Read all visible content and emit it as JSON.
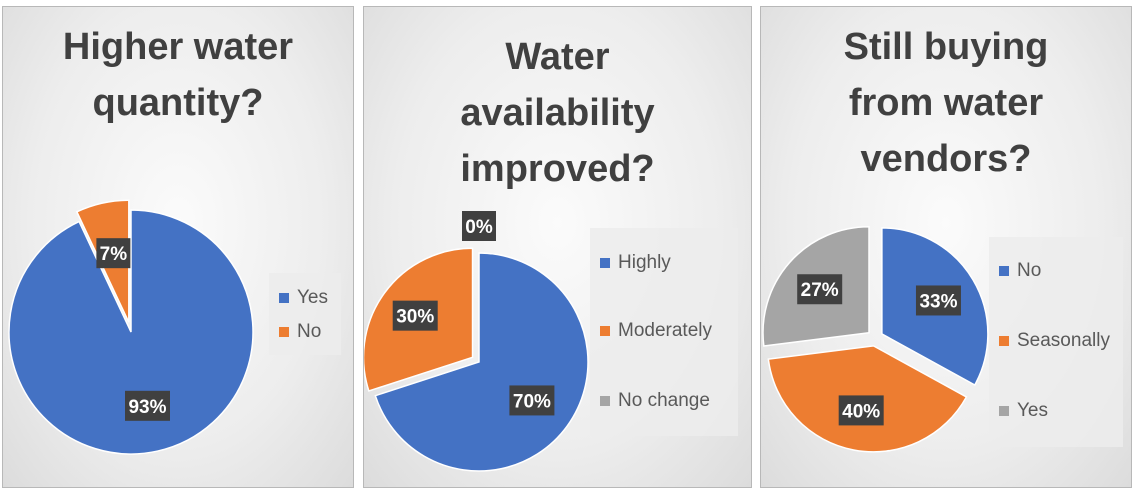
{
  "colors": {
    "blue": "#4472C4",
    "orange": "#ED7D31",
    "gray": "#A5A5A5"
  },
  "chart_data": [
    {
      "type": "pie",
      "title_lines": [
        "Higher water",
        "quantity?"
      ],
      "categories": [
        "Yes",
        "No"
      ],
      "values": [
        93,
        7
      ],
      "labels": [
        "93%",
        "7%"
      ],
      "colors": [
        "#4472C4",
        "#ED7D31"
      ],
      "legend_position": "right"
    },
    {
      "type": "pie",
      "title_lines": [
        "Water",
        "availability",
        "improved?"
      ],
      "categories": [
        "Highly",
        "Moderately",
        "No change"
      ],
      "values": [
        70,
        30,
        0
      ],
      "labels": [
        "70%",
        "30%",
        "0%"
      ],
      "colors": [
        "#4472C4",
        "#ED7D31",
        "#A5A5A5"
      ],
      "legend_position": "right"
    },
    {
      "type": "pie",
      "title_lines": [
        "Still buying",
        "from water",
        "vendors?"
      ],
      "categories": [
        "No",
        "Seasonally",
        "Yes"
      ],
      "values": [
        33,
        40,
        27
      ],
      "labels": [
        "33%",
        "40%",
        "27%"
      ],
      "colors": [
        "#4472C4",
        "#ED7D31",
        "#A5A5A5"
      ],
      "legend_position": "right"
    }
  ]
}
